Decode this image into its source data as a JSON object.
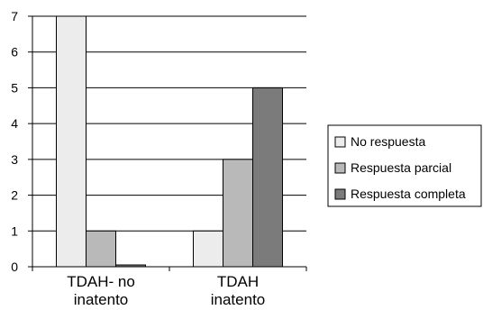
{
  "chart_data": {
    "type": "bar",
    "categories": [
      [
        "TDAH- no",
        "inatento"
      ],
      [
        "TDAH",
        "inatento"
      ]
    ],
    "series": [
      {
        "name": "No respuesta",
        "values": [
          7,
          1
        ],
        "color": "#ececec"
      },
      {
        "name": "Respuesta parcial",
        "values": [
          1,
          3
        ],
        "color": "#b9b9b9"
      },
      {
        "name": "Respuesta completa",
        "values": [
          0.05,
          5
        ],
        "color": "#7b7b7b"
      }
    ],
    "ylim": [
      0,
      7
    ],
    "yticks": [
      "0",
      "1",
      "2",
      "3",
      "4",
      "5",
      "6",
      "7"
    ],
    "grid": true,
    "legend_position": "right",
    "title": "",
    "xlabel": "",
    "ylabel": ""
  }
}
